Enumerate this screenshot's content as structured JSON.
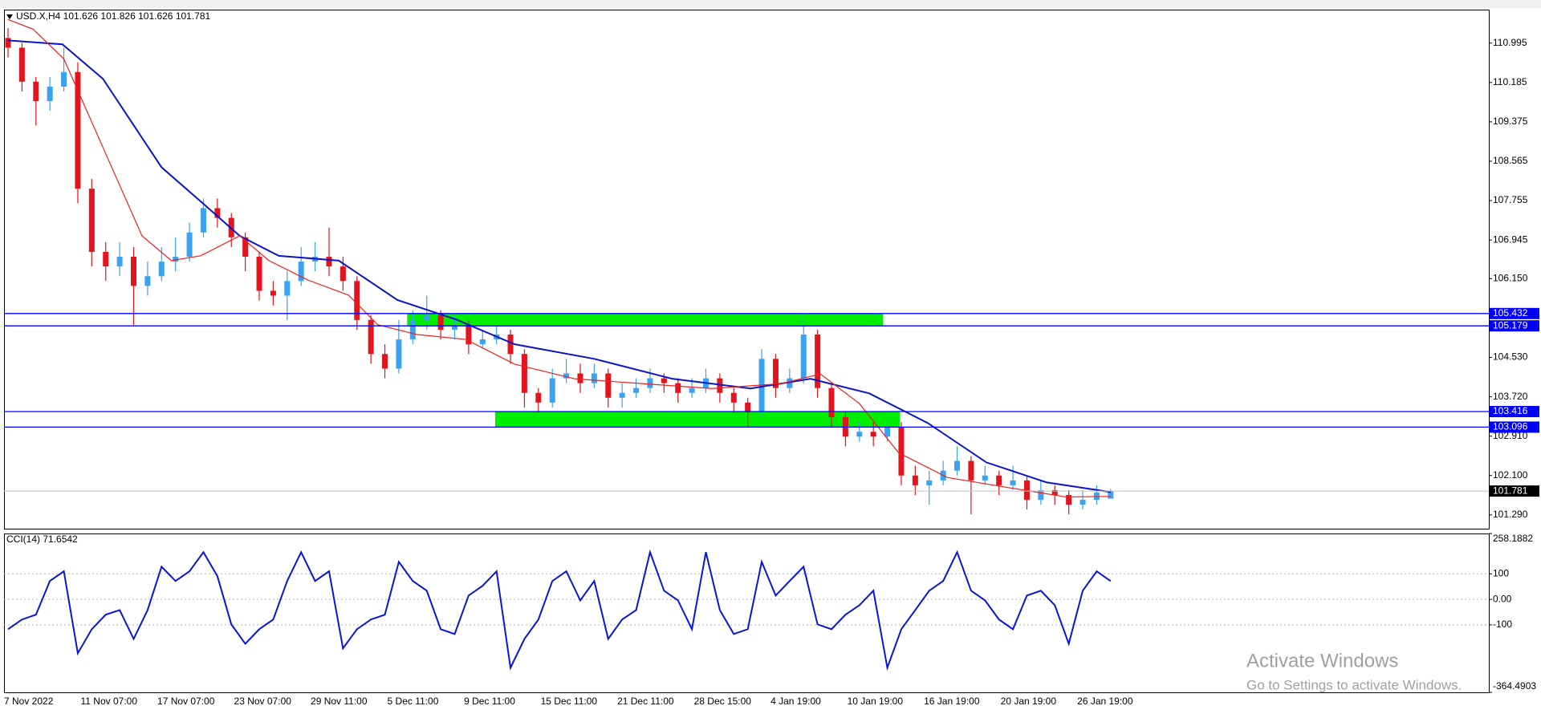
{
  "chart_data": [
    {
      "type": "candlestick",
      "title": "USD.X,H4  101.626 101.826 101.626 101.781",
      "open": [
        111.1,
        110.9,
        110.2,
        109.8,
        110.1,
        110.4,
        108.0,
        106.7,
        106.4,
        106.6,
        106.0,
        106.2,
        106.5,
        106.6,
        107.1,
        107.6,
        107.4,
        107.0,
        106.6,
        105.9,
        105.8,
        106.1,
        106.5,
        106.6,
        106.4,
        106.1,
        105.3,
        104.6,
        104.3,
        104.9,
        105.3,
        105.4,
        105.1,
        105.2,
        104.8,
        104.9,
        105.0,
        104.6,
        103.8,
        103.6,
        104.1,
        104.2,
        104.0,
        104.2,
        103.7,
        103.8,
        103.9,
        104.1,
        104.0,
        103.8,
        103.9,
        104.1,
        103.8,
        103.6,
        103.4,
        104.5,
        103.9,
        104.1,
        105.0,
        103.9,
        103.3,
        102.9,
        103.0,
        102.9,
        103.1,
        102.1,
        101.9,
        102.0,
        102.2,
        102.4,
        102.0,
        102.1,
        101.9,
        102.0,
        101.6,
        101.8,
        101.7,
        101.5,
        101.6,
        101.626
      ],
      "high": [
        111.3,
        111.0,
        110.3,
        110.3,
        110.9,
        110.6,
        108.2,
        106.9,
        106.9,
        106.8,
        106.5,
        106.8,
        107.0,
        107.3,
        107.8,
        107.8,
        107.5,
        107.1,
        106.7,
        106.1,
        106.3,
        106.8,
        106.9,
        107.2,
        106.6,
        106.2,
        105.4,
        104.8,
        105.3,
        105.5,
        105.8,
        105.5,
        105.4,
        105.3,
        105.1,
        105.2,
        105.1,
        104.7,
        103.9,
        104.3,
        104.5,
        104.4,
        104.4,
        104.3,
        104.0,
        104.1,
        104.3,
        104.2,
        104.1,
        104.1,
        104.3,
        104.2,
        103.9,
        103.7,
        104.7,
        104.6,
        104.3,
        105.4,
        105.1,
        104.0,
        103.4,
        103.2,
        103.2,
        103.3,
        103.2,
        102.3,
        102.2,
        102.4,
        102.7,
        102.5,
        102.3,
        102.2,
        102.3,
        102.1,
        102.0,
        101.9,
        101.8,
        101.8,
        101.9,
        101.826
      ],
      "low": [
        110.7,
        110.0,
        109.3,
        109.6,
        110.0,
        107.7,
        106.4,
        106.1,
        106.2,
        105.2,
        105.8,
        106.1,
        106.3,
        106.5,
        107.0,
        107.2,
        106.8,
        106.3,
        105.7,
        105.6,
        105.3,
        106.0,
        106.3,
        106.2,
        105.9,
        105.1,
        104.4,
        104.1,
        104.2,
        104.8,
        105.1,
        104.9,
        104.9,
        104.6,
        104.7,
        104.8,
        104.4,
        103.5,
        103.4,
        103.5,
        104.0,
        103.8,
        103.9,
        103.5,
        103.5,
        103.7,
        103.8,
        103.8,
        103.6,
        103.7,
        103.8,
        103.6,
        103.4,
        103.1,
        103.3,
        103.7,
        103.8,
        104.0,
        103.7,
        103.1,
        102.7,
        102.8,
        102.7,
        102.8,
        101.9,
        101.7,
        101.5,
        101.9,
        102.1,
        101.3,
        101.9,
        101.7,
        101.8,
        101.4,
        101.5,
        101.5,
        101.3,
        101.4,
        101.5,
        101.626
      ],
      "close": [
        110.9,
        110.2,
        109.8,
        110.1,
        110.4,
        108.0,
        106.7,
        106.4,
        106.6,
        106.0,
        106.2,
        106.5,
        106.6,
        107.1,
        107.6,
        107.4,
        107.0,
        106.6,
        105.9,
        105.8,
        106.1,
        106.5,
        106.6,
        106.4,
        106.1,
        105.3,
        104.6,
        104.3,
        104.9,
        105.3,
        105.4,
        105.1,
        105.2,
        104.8,
        104.9,
        105.0,
        104.6,
        103.8,
        103.6,
        104.1,
        104.2,
        104.0,
        104.2,
        103.7,
        103.8,
        103.9,
        104.1,
        104.0,
        103.8,
        103.9,
        104.1,
        103.8,
        103.6,
        103.4,
        104.5,
        103.9,
        104.1,
        105.0,
        103.9,
        103.3,
        102.9,
        103.0,
        102.9,
        103.1,
        102.1,
        101.9,
        102.0,
        102.2,
        102.4,
        102.0,
        102.1,
        101.9,
        102.0,
        101.6,
        101.8,
        101.7,
        101.5,
        101.6,
        101.75,
        101.781
      ],
      "up_color": "#3aa2f0",
      "down_color": "#e3141c",
      "series": [
        {
          "color": "#0a14c8",
          "x": [
            0,
            3.9,
            6.8,
            11,
            13.8,
            16.6,
            19.4,
            23.7,
            27.9,
            32.1,
            36.3,
            42,
            47.6,
            53.2,
            57.5,
            61.7,
            65.9,
            70.1,
            74.4,
            79
          ],
          "values": [
            111.05,
            110.97,
            110.26,
            108.44,
            107.74,
            107.03,
            106.62,
            106.52,
            105.71,
            105.31,
            104.8,
            104.5,
            104.09,
            103.89,
            104.09,
            103.79,
            103.18,
            102.37,
            101.96,
            101.76
          ]
        },
        {
          "color": "#ee2020",
          "x": [
            0,
            1.8,
            4,
            6.8,
            9.6,
            11.7,
            13.8,
            16.6,
            18.7,
            21.5,
            24.4,
            26.5,
            29.3,
            32.8,
            36.3,
            40.6,
            45.5,
            50.4,
            55.4,
            58.2,
            61,
            63.8,
            67.3,
            71.5,
            75.8,
            79
          ],
          "values": [
            111.48,
            111.28,
            110.67,
            108.85,
            107.03,
            106.52,
            106.62,
            107.03,
            106.52,
            106.12,
            105.81,
            105.2,
            105.0,
            104.9,
            104.39,
            104.09,
            103.99,
            103.89,
            103.99,
            104.19,
            103.58,
            102.57,
            102.06,
            101.86,
            101.66,
            101.67
          ]
        }
      ],
      "hlines": [
        105.432,
        105.179,
        103.416,
        103.096
      ],
      "hline_color": "#0000ff",
      "zones": [
        {
          "y": [
            105.179,
            105.432
          ],
          "x": [
            28.6,
            62.7
          ]
        },
        {
          "y": [
            103.096,
            103.416
          ],
          "x": [
            34.9,
            63.9
          ]
        }
      ],
      "zone_color": "#00ee00",
      "ylim": [
        101.007,
        111.683
      ],
      "yticks": [
        110.995,
        110.185,
        109.375,
        108.565,
        107.755,
        106.945,
        {
          "value": 106.15,
          "label": "106.150"
        },
        {
          "value": 104.53,
          "label": "104.530"
        },
        {
          "value": 103.72,
          "label": "103.720"
        },
        {
          "value": 102.91,
          "label": "102.910"
        },
        {
          "value": 102.1,
          "label": "102.100"
        },
        {
          "value": 101.29,
          "label": "101.290"
        }
      ],
      "grid": false,
      "x_labels": [
        "7 Nov 2022",
        "11 Nov 07:00",
        "17 Nov 07:00",
        "23 Nov 07:00",
        "29 Nov 11:00",
        "5 Dec 11:00",
        "9 Dec 11:00",
        "15 Dec 11:00",
        "21 Dec 11:00",
        "28 Dec 15:00",
        "4 Jan 19:00",
        "10 Jan 19:00",
        "16 Jan 19:00",
        "20 Jan 19:00",
        "26 Jan 19:00"
      ]
    },
    {
      "type": "line",
      "title": "CCI(14) 71.6542",
      "color": "#0a14d8",
      "values": [
        -117,
        -79,
        -60,
        72,
        110,
        -211,
        -117,
        -60,
        -42,
        -155,
        -42,
        128,
        72,
        110,
        185,
        91,
        -98,
        -174,
        -117,
        -79,
        72,
        185,
        72,
        110,
        -192,
        -117,
        -79,
        -60,
        147,
        72,
        34,
        -117,
        -136,
        15,
        53,
        110,
        -268,
        -155,
        -79,
        72,
        110,
        -4,
        72,
        -155,
        -79,
        -42,
        185,
        34,
        -4,
        -117,
        185,
        -42,
        -136,
        -117,
        147,
        15,
        72,
        128,
        -98,
        -117,
        -60,
        -23,
        34,
        -268,
        -117,
        -42,
        34,
        72,
        185,
        34,
        -4,
        -79,
        -117,
        15,
        34,
        -23,
        -174,
        34,
        110,
        71.6542
      ],
      "ylim": [
        -364.4903,
        258.1882
      ],
      "yticks": [
        258.1882,
        100,
        {
          "value": 0,
          "label": "0.00"
        },
        -100,
        -364.4903
      ],
      "grid": true
    }
  ],
  "watermark": {
    "title": "Activate Windows",
    "text": "Go to Settings to activate Windows."
  }
}
